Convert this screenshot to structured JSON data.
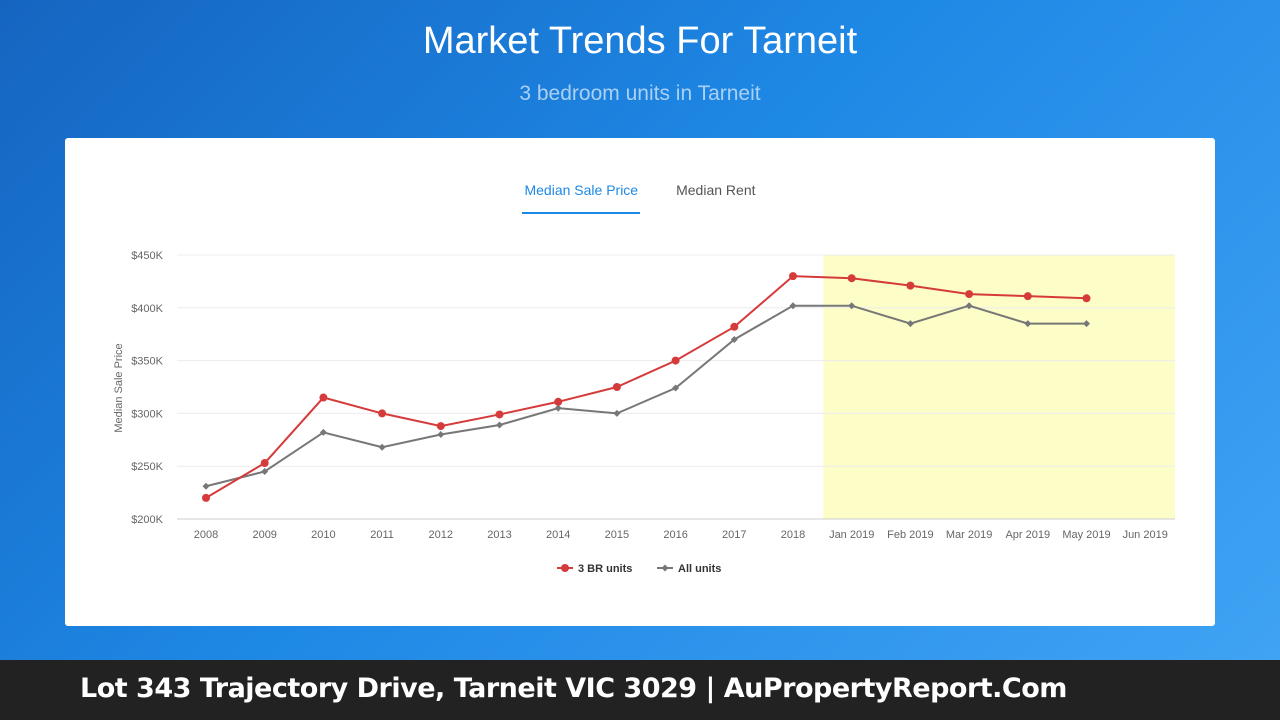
{
  "header": {
    "title": "Market Trends For Tarneit",
    "subtitle": "3 bedroom units in Tarneit"
  },
  "tabs": [
    {
      "label": "Median Sale Price",
      "active": true
    },
    {
      "label": "Median Rent",
      "active": false
    }
  ],
  "footer": {
    "text": "Lot 343 Trajectory Drive, Tarneit VIC 3029 | AuPropertyReport.Com"
  },
  "colors": {
    "series_3br": "#d63b3b",
    "series_all": "#777777",
    "highlight_band": "#fdfdc8",
    "active_tab": "#1e88e5"
  },
  "chart_data": {
    "type": "line",
    "title": "",
    "xlabel": "",
    "ylabel": "Median Sale Price",
    "categories": [
      "2008",
      "2009",
      "2010",
      "2011",
      "2012",
      "2013",
      "2014",
      "2015",
      "2016",
      "2017",
      "2018",
      "Jan 2019",
      "Feb 2019",
      "Mar 2019",
      "Apr 2019",
      "May 2019",
      "Jun 2019"
    ],
    "y_ticks": [
      "$200K",
      "$250K",
      "$300K",
      "$350K",
      "$400K",
      "$450K"
    ],
    "ylim": [
      200000,
      450000
    ],
    "highlight_range": [
      "Jan 2019",
      "Jun 2019"
    ],
    "grid": true,
    "legend_position": "bottom-center",
    "series": [
      {
        "name": "3 BR units",
        "marker": "circle",
        "values": [
          220000,
          253000,
          315000,
          300000,
          288000,
          299000,
          311000,
          325000,
          350000,
          382000,
          430000,
          428000,
          421000,
          413000,
          411000,
          409000,
          null
        ]
      },
      {
        "name": "All units",
        "marker": "diamond",
        "values": [
          231000,
          245000,
          282000,
          268000,
          280000,
          289000,
          305000,
          300000,
          324000,
          370000,
          402000,
          402000,
          385000,
          402000,
          385000,
          385000,
          null
        ]
      }
    ]
  }
}
